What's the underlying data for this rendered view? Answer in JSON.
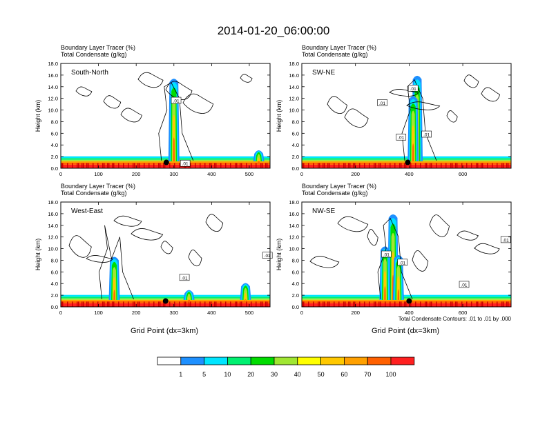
{
  "main_title": "2014-01-20_06:00:00",
  "panel_header": {
    "line1_label": "Boundary Layer Tracer",
    "line1_units": "(%)",
    "line2_label": "Total Condensate",
    "line2_units": "(g/kg)"
  },
  "ylabel": "Height (km)",
  "xlabel": "Grid Point (dx=3km)",
  "contour_note": "Total Condensate Contours: .01 to .01 by .000",
  "contour_label": ".01",
  "colors": {
    "levels": [
      "#ffffff",
      "#1e90ff",
      "#00e5ff",
      "#00f070",
      "#00dc00",
      "#a0e632",
      "#ffff00",
      "#ffc800",
      "#ffa000",
      "#ff6000",
      "#ff2020"
    ],
    "contour": "#000000",
    "marker": "#000000"
  },
  "chart_data": [
    {
      "type": "heatmap",
      "name": "South-North",
      "xlim": [
        0,
        555
      ],
      "xticks": [
        0,
        100,
        200,
        300,
        400,
        500
      ],
      "ylim": [
        0,
        18
      ],
      "yticks": [
        "0.0",
        "2.0",
        "4.0",
        "6.0",
        "8.0",
        "10.0",
        "12.0",
        "14.0",
        "16.0",
        "18.0"
      ],
      "plumes": [
        {
          "x": 300,
          "top_km": 15.5
        },
        {
          "x": 525,
          "top_km": 3.2
        }
      ],
      "marker": {
        "x": 280,
        "z_km": 1.0
      },
      "contour_labels": [
        {
          "x": 306,
          "z_km": 11.6
        },
        {
          "x": 330,
          "z_km": 0.8
        }
      ]
    },
    {
      "type": "heatmap",
      "name": "SW-NE",
      "xlim": [
        0,
        780
      ],
      "xticks": [
        0,
        200,
        400,
        600
      ],
      "ylim": [
        0,
        18
      ],
      "yticks": [
        "0.0",
        "2.0",
        "4.0",
        "6.0",
        "8.0",
        "10.0",
        "12.0",
        "14.0",
        "16.0",
        "18.0"
      ],
      "plumes": [
        {
          "x": 430,
          "top_km": 16.0
        },
        {
          "x": 415,
          "top_km": 12.5
        }
      ],
      "marker": {
        "x": 395,
        "z_km": 1.0
      },
      "contour_labels": [
        {
          "x": 300,
          "z_km": 11.2
        },
        {
          "x": 415,
          "z_km": 13.7
        },
        {
          "x": 370,
          "z_km": 5.3
        },
        {
          "x": 465,
          "z_km": 5.8
        }
      ]
    },
    {
      "type": "heatmap",
      "name": "West-East",
      "xlim": [
        0,
        555
      ],
      "xticks": [
        0,
        100,
        200,
        300,
        400,
        500
      ],
      "ylim": [
        0,
        18
      ],
      "yticks": [
        "0.0",
        "2.0",
        "4.0",
        "6.0",
        "8.0",
        "10.0",
        "12.0",
        "14.0",
        "16.0",
        "18.0"
      ],
      "plumes": [
        {
          "x": 142,
          "top_km": 8.7
        },
        {
          "x": 340,
          "top_km": 3.0
        },
        {
          "x": 490,
          "top_km": 4.2
        }
      ],
      "marker": {
        "x": 278,
        "z_km": 1.0
      },
      "contour_labels": [
        {
          "x": 328,
          "z_km": 5.0
        },
        {
          "x": 548,
          "z_km": 8.8
        }
      ]
    },
    {
      "type": "heatmap",
      "name": "NW-SE",
      "xlim": [
        0,
        780
      ],
      "xticks": [
        0,
        200,
        400,
        600
      ],
      "ylim": [
        0,
        18
      ],
      "yticks": [
        "0.0",
        "2.0",
        "4.0",
        "6.0",
        "8.0",
        "10.0",
        "12.0",
        "14.0",
        "16.0",
        "18.0"
      ],
      "plumes": [
        {
          "x": 340,
          "top_km": 16.0
        },
        {
          "x": 310,
          "top_km": 10.5
        },
        {
          "x": 360,
          "top_km": 9.0
        }
      ],
      "marker": {
        "x": 400,
        "z_km": 1.0
      },
      "contour_labels": [
        {
          "x": 315,
          "z_km": 9.0
        },
        {
          "x": 375,
          "z_km": 7.6
        },
        {
          "x": 605,
          "z_km": 3.8
        },
        {
          "x": 760,
          "z_km": 11.5
        }
      ]
    }
  ],
  "colorbar": {
    "labels": [
      "1",
      "5",
      "10",
      "20",
      "30",
      "40",
      "50",
      "60",
      "70",
      "100"
    ]
  }
}
